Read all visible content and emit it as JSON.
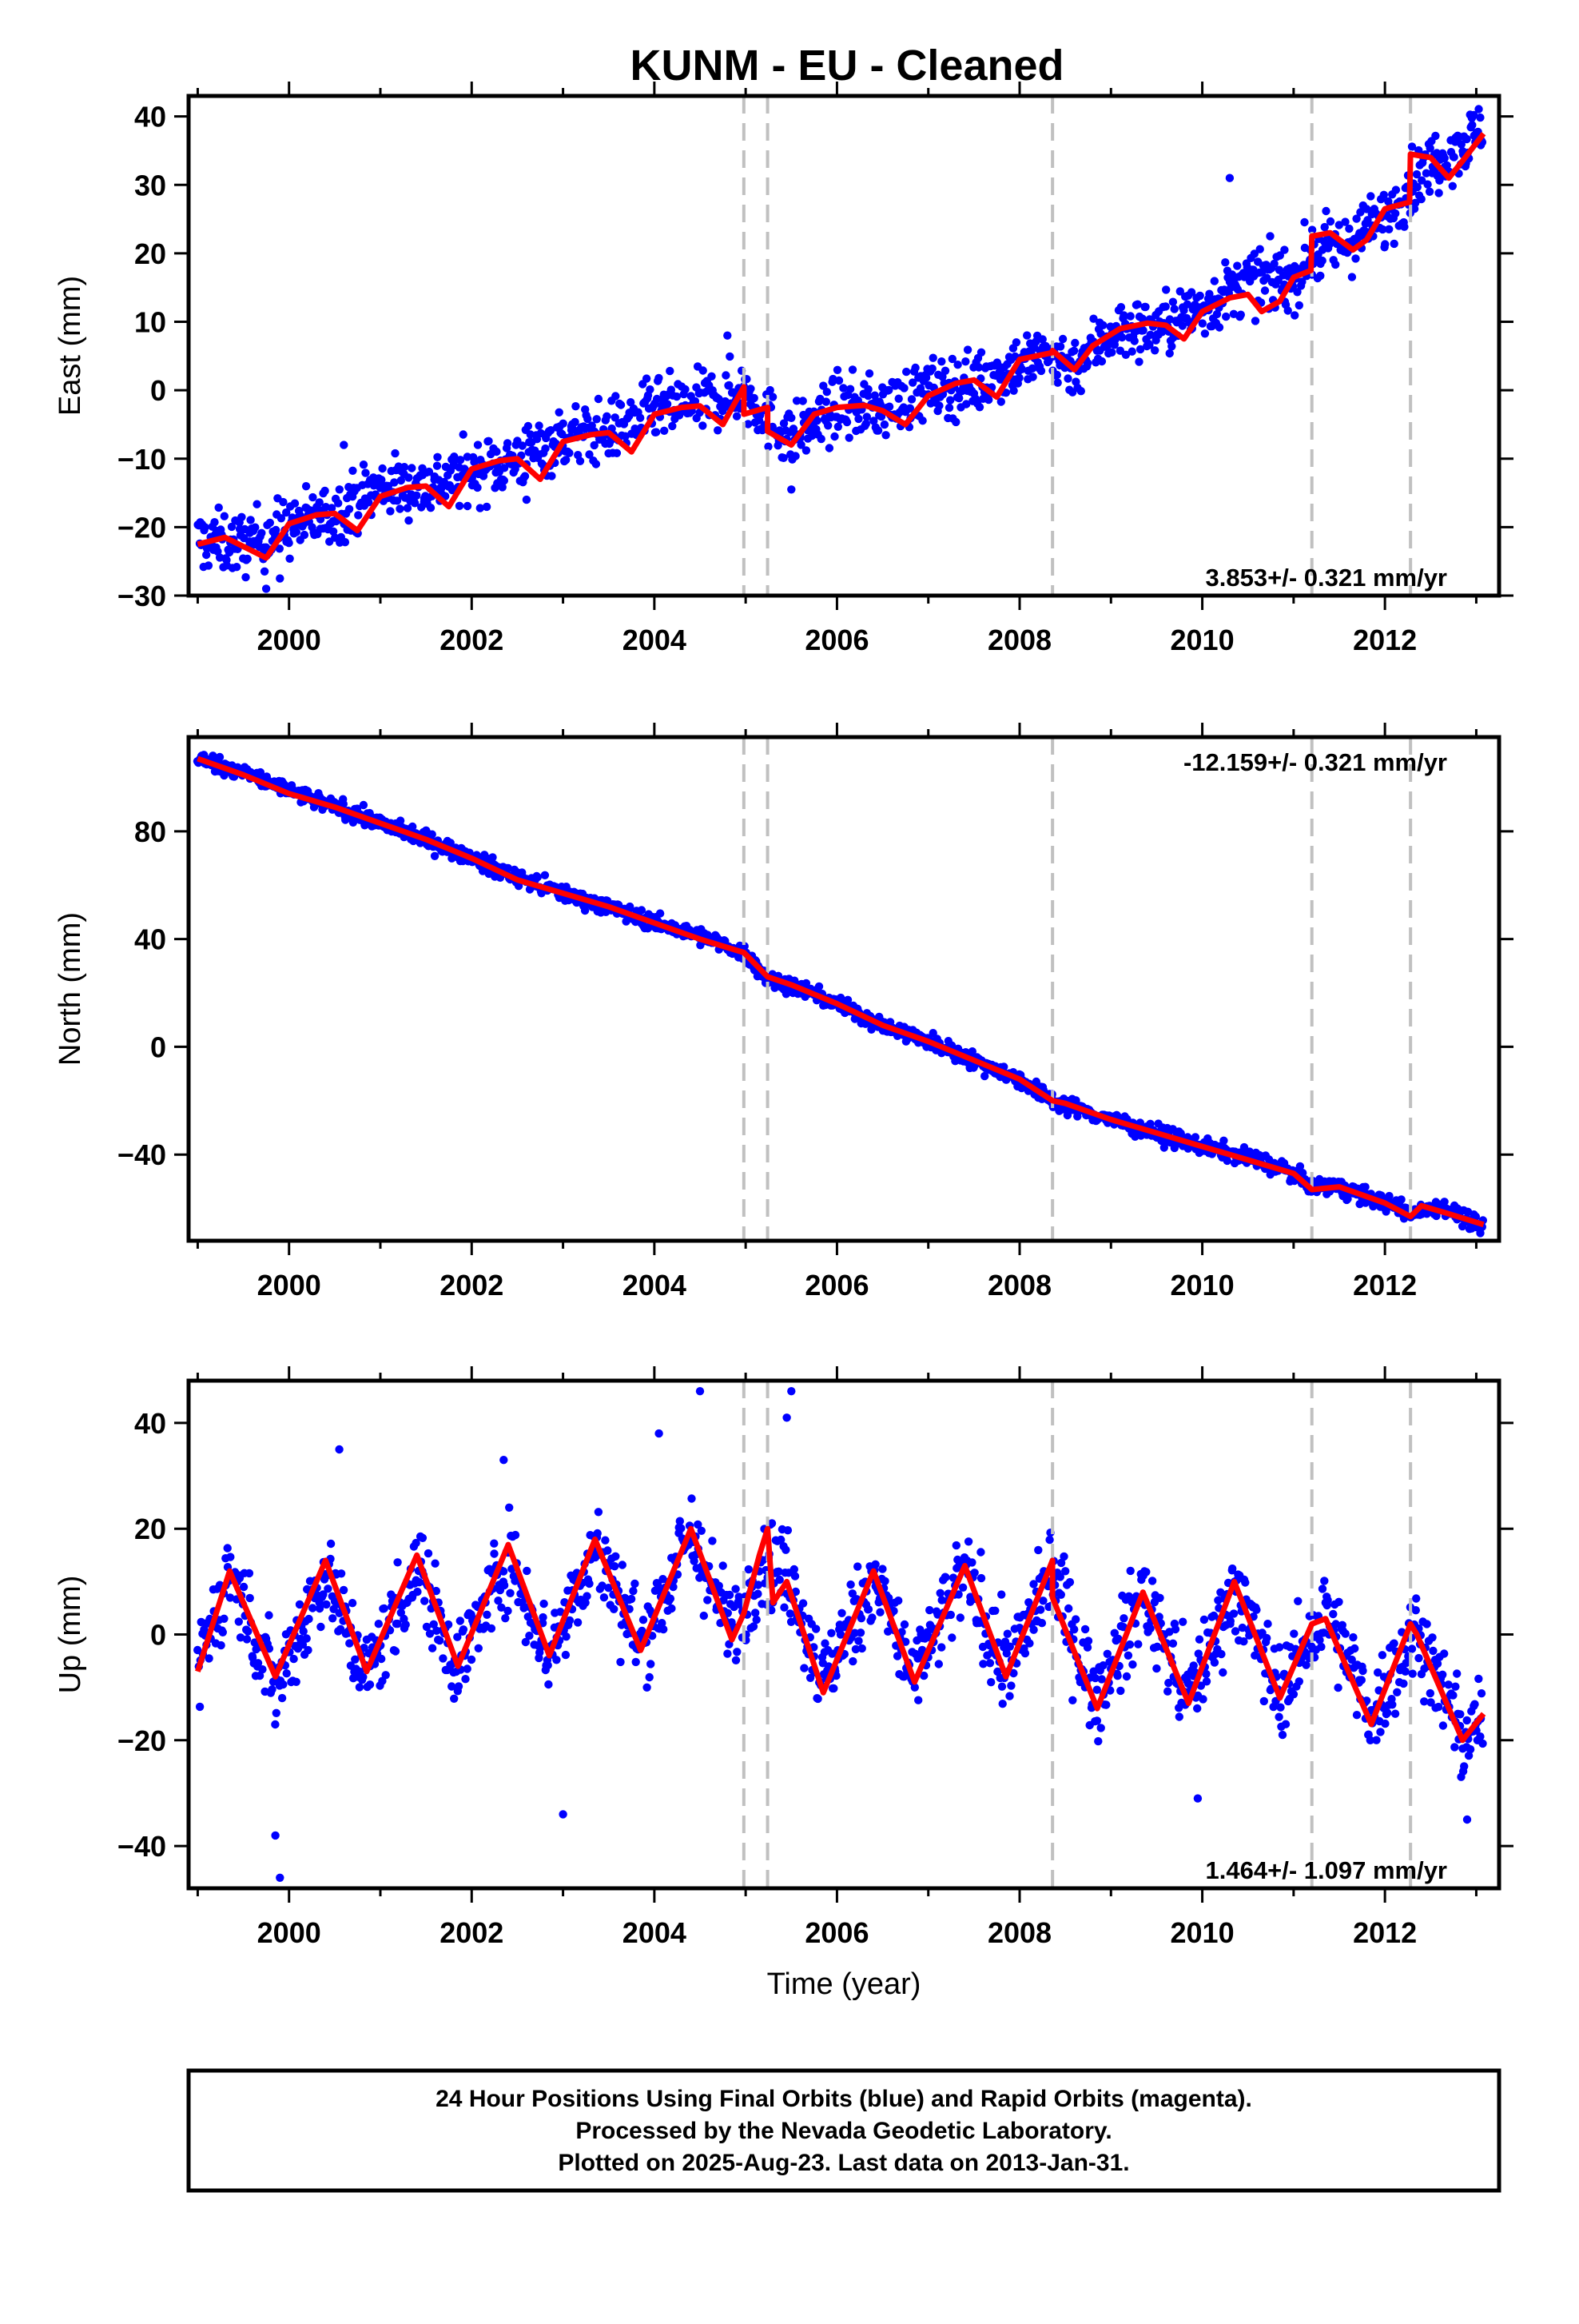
{
  "title": "KUNM  - EU - Cleaned",
  "footer": {
    "line1": "24 Hour Positions Using Final Orbits (blue) and Rapid Orbits (magenta).",
    "line2": "Processed by the Nevada Geodetic Laboratory.",
    "line3": "Plotted on 2025-Aug-23. Last data on 2013-Jan-31."
  },
  "colors": {
    "data": "#0000ff",
    "model": "#ff0000",
    "steps": "#c0c0c0",
    "frame": "#000000"
  },
  "chart_data": [
    {
      "type": "scatter",
      "name": "east",
      "ylabel": "East (mm)",
      "xlabel": "",
      "xlim": [
        1998.9,
        2013.25
      ],
      "ylim": [
        -30,
        43
      ],
      "yticks": [
        40,
        30,
        20,
        10,
        0,
        -10,
        -20,
        -30
      ],
      "yticklabels": [
        "40",
        "30",
        "20",
        "10",
        "0",
        "−10",
        "−20",
        "−30"
      ],
      "xticks": [
        2000,
        2002,
        2004,
        2006,
        2008,
        2010,
        2012
      ],
      "xticklabels": [
        "2000",
        "2002",
        "2004",
        "2006",
        "2008",
        "2010",
        "2012"
      ],
      "rate_label": "3.853+/- 0.321 mm/yr",
      "rate_position": "bottom-right",
      "step_epochs": [
        2004.98,
        2005.24,
        2008.36,
        2011.2,
        2012.28
      ],
      "model": [
        [
          1999.0,
          -22.5
        ],
        [
          1999.3,
          -21.5
        ],
        [
          1999.6,
          -23.5
        ],
        [
          1999.75,
          -24.5
        ],
        [
          2000.0,
          -19.5
        ],
        [
          2000.3,
          -18.2
        ],
        [
          2000.5,
          -18.0
        ],
        [
          2000.75,
          -20.5
        ],
        [
          2001.0,
          -15.5
        ],
        [
          2001.3,
          -14.2
        ],
        [
          2001.5,
          -14.0
        ],
        [
          2001.75,
          -17.0
        ],
        [
          2002.0,
          -11.5
        ],
        [
          2002.3,
          -10.3
        ],
        [
          2002.5,
          -10.0
        ],
        [
          2002.75,
          -13.0
        ],
        [
          2003.0,
          -7.5
        ],
        [
          2003.3,
          -6.5
        ],
        [
          2003.5,
          -6.2
        ],
        [
          2003.75,
          -9.0
        ],
        [
          2004.0,
          -3.5
        ],
        [
          2004.3,
          -2.5
        ],
        [
          2004.5,
          -2.3
        ],
        [
          2004.75,
          -5.0
        ],
        [
          2004.98,
          0.5
        ],
        [
          2004.98,
          -3.5
        ],
        [
          2005.24,
          -2.5
        ],
        [
          2005.24,
          -6.0
        ],
        [
          2005.5,
          -8.0
        ],
        [
          2005.75,
          -3.5
        ],
        [
          2006.0,
          -2.5
        ],
        [
          2006.3,
          -2.2
        ],
        [
          2006.5,
          -3.0
        ],
        [
          2006.75,
          -5.0
        ],
        [
          2007.0,
          -0.8
        ],
        [
          2007.3,
          1.0
        ],
        [
          2007.5,
          1.5
        ],
        [
          2007.75,
          -1.0
        ],
        [
          2008.0,
          4.5
        ],
        [
          2008.36,
          5.5
        ],
        [
          2008.36,
          5.8
        ],
        [
          2008.6,
          3.0
        ],
        [
          2008.8,
          6.5
        ],
        [
          2009.1,
          9.0
        ],
        [
          2009.4,
          9.8
        ],
        [
          2009.6,
          9.5
        ],
        [
          2009.8,
          7.5
        ],
        [
          2010.0,
          11.5
        ],
        [
          2010.3,
          13.5
        ],
        [
          2010.5,
          14.0
        ],
        [
          2010.65,
          11.5
        ],
        [
          2010.85,
          13.0
        ],
        [
          2011.0,
          16.5
        ],
        [
          2011.19,
          17.5
        ],
        [
          2011.2,
          22.5
        ],
        [
          2011.4,
          23.0
        ],
        [
          2011.65,
          20.5
        ],
        [
          2011.8,
          22.0
        ],
        [
          2012.0,
          26.5
        ],
        [
          2012.27,
          27.5
        ],
        [
          2012.28,
          34.5
        ],
        [
          2012.5,
          34.0
        ],
        [
          2012.7,
          31.0
        ],
        [
          2012.85,
          33.5
        ],
        [
          2013.08,
          37.5
        ]
      ],
      "scatter": {
        "anchors": [
          [
            1999.0,
            -22
          ],
          [
            1999.5,
            -22.5
          ],
          [
            2000.0,
            -20
          ],
          [
            2000.5,
            -18
          ],
          [
            2001.0,
            -14
          ],
          [
            2001.5,
            -14
          ],
          [
            2002.0,
            -12
          ],
          [
            2002.5,
            -10
          ],
          [
            2003.0,
            -7
          ],
          [
            2003.5,
            -6
          ],
          [
            2004.0,
            -3
          ],
          [
            2004.5,
            -2
          ],
          [
            2004.98,
            0
          ],
          [
            2005.24,
            -4
          ],
          [
            2005.5,
            -7
          ],
          [
            2006.0,
            -2.5
          ],
          [
            2006.5,
            -2.5
          ],
          [
            2007.0,
            0
          ],
          [
            2007.5,
            1
          ],
          [
            2008.0,
            4
          ],
          [
            2008.36,
            5
          ],
          [
            2008.6,
            3.5
          ],
          [
            2009.0,
            8.5
          ],
          [
            2009.5,
            9
          ],
          [
            2010.0,
            12
          ],
          [
            2010.5,
            16
          ],
          [
            2011.0,
            16
          ],
          [
            2011.2,
            20
          ],
          [
            2011.5,
            21
          ],
          [
            2012.0,
            25
          ],
          [
            2012.28,
            30
          ],
          [
            2012.5,
            33
          ],
          [
            2013.08,
            38
          ]
        ],
        "spread": 3.2,
        "outliers": [
          [
            1999.75,
            -29
          ],
          [
            1999.9,
            -27.5
          ],
          [
            2000.6,
            -8
          ],
          [
            2002.6,
            -16
          ],
          [
            2004.8,
            8
          ],
          [
            2005.5,
            -14.5
          ],
          [
            2010.3,
            31
          ],
          [
            2010.9,
            20.5
          ]
        ]
      }
    },
    {
      "type": "scatter",
      "name": "north",
      "ylabel": "North (mm)",
      "xlabel": "",
      "xlim": [
        1998.9,
        2013.25
      ],
      "ylim": [
        -72,
        115
      ],
      "yticks": [
        80,
        40,
        0,
        -40
      ],
      "yticklabels": [
        "80",
        "40",
        "0",
        "−40"
      ],
      "xticks": [
        2000,
        2002,
        2004,
        2006,
        2008,
        2010,
        2012
      ],
      "xticklabels": [
        "2000",
        "2002",
        "2004",
        "2006",
        "2008",
        "2010",
        "2012"
      ],
      "rate_label": "-12.159+/- 0.321 mm/yr",
      "rate_position": "top-right",
      "step_epochs": [
        2004.98,
        2005.24,
        2008.36,
        2011.2,
        2012.28
      ],
      "model": [
        [
          1999.0,
          107
        ],
        [
          1999.5,
          101
        ],
        [
          2000.0,
          94
        ],
        [
          2000.5,
          89
        ],
        [
          2001.0,
          83
        ],
        [
          2001.5,
          77
        ],
        [
          2002.0,
          70
        ],
        [
          2002.5,
          62
        ],
        [
          2003.0,
          57
        ],
        [
          2003.5,
          52
        ],
        [
          2004.0,
          46
        ],
        [
          2004.5,
          40
        ],
        [
          2004.98,
          35
        ],
        [
          2005.24,
          26
        ],
        [
          2005.5,
          23
        ],
        [
          2006.0,
          16
        ],
        [
          2006.5,
          8
        ],
        [
          2007.0,
          2
        ],
        [
          2007.5,
          -5
        ],
        [
          2008.0,
          -12
        ],
        [
          2008.36,
          -20
        ],
        [
          2008.5,
          -21
        ],
        [
          2009.0,
          -27
        ],
        [
          2009.5,
          -32
        ],
        [
          2010.0,
          -37
        ],
        [
          2010.5,
          -42
        ],
        [
          2011.0,
          -47
        ],
        [
          2011.2,
          -53
        ],
        [
          2011.5,
          -52
        ],
        [
          2012.0,
          -58
        ],
        [
          2012.28,
          -63
        ],
        [
          2012.4,
          -59
        ],
        [
          2012.7,
          -62
        ],
        [
          2013.08,
          -66
        ]
      ],
      "scatter": {
        "anchors": [
          [
            1999.0,
            107
          ],
          [
            1999.5,
            102
          ],
          [
            2000.0,
            95
          ],
          [
            2000.5,
            89
          ],
          [
            2001.0,
            83
          ],
          [
            2001.5,
            77
          ],
          [
            2002.0,
            70
          ],
          [
            2002.5,
            63
          ],
          [
            2003.0,
            57
          ],
          [
            2003.5,
            52
          ],
          [
            2004.0,
            46
          ],
          [
            2004.5,
            41
          ],
          [
            2004.98,
            35
          ],
          [
            2005.24,
            25
          ],
          [
            2005.5,
            23
          ],
          [
            2006.0,
            16
          ],
          [
            2006.5,
            8
          ],
          [
            2007.0,
            2
          ],
          [
            2007.5,
            -5
          ],
          [
            2008.0,
            -12
          ],
          [
            2008.36,
            -20
          ],
          [
            2009.0,
            -27
          ],
          [
            2009.5,
            -32
          ],
          [
            2010.0,
            -37
          ],
          [
            2010.5,
            -41
          ],
          [
            2011.0,
            -47
          ],
          [
            2011.2,
            -52
          ],
          [
            2011.5,
            -52
          ],
          [
            2012.0,
            -58
          ],
          [
            2012.28,
            -62
          ],
          [
            2012.6,
            -59
          ],
          [
            2013.08,
            -67
          ]
        ],
        "spread": 2.2,
        "outliers": []
      }
    },
    {
      "type": "scatter",
      "name": "up",
      "ylabel": "Up (mm)",
      "xlabel": "Time (year)",
      "xlim": [
        1998.9,
        2013.25
      ],
      "ylim": [
        -48,
        48
      ],
      "yticks": [
        40,
        20,
        0,
        -20,
        -40
      ],
      "yticklabels": [
        "40",
        "20",
        "0",
        "−20",
        "−40"
      ],
      "xticks": [
        2000,
        2002,
        2004,
        2006,
        2008,
        2010,
        2012
      ],
      "xticklabels": [
        "2000",
        "2002",
        "2004",
        "2006",
        "2008",
        "2010",
        "2012"
      ],
      "rate_label": "1.464+/- 1.097 mm/yr",
      "rate_position": "bottom-right",
      "step_epochs": [
        2004.98,
        2005.24,
        2008.36,
        2011.2,
        2012.28
      ],
      "model": [
        [
          1999.0,
          -7
        ],
        [
          1999.35,
          12
        ],
        [
          1999.85,
          -8
        ],
        [
          2000.4,
          14
        ],
        [
          2000.85,
          -7
        ],
        [
          2001.4,
          15
        ],
        [
          2001.85,
          -6
        ],
        [
          2002.4,
          17
        ],
        [
          2002.85,
          -4
        ],
        [
          2003.35,
          18
        ],
        [
          2003.85,
          -3
        ],
        [
          2004.4,
          20
        ],
        [
          2004.85,
          -1
        ],
        [
          2004.98,
          4
        ],
        [
          2005.15,
          15
        ],
        [
          2005.24,
          20
        ],
        [
          2005.3,
          6
        ],
        [
          2005.45,
          10
        ],
        [
          2005.85,
          -11
        ],
        [
          2006.4,
          12
        ],
        [
          2006.85,
          -9
        ],
        [
          2007.4,
          13
        ],
        [
          2007.85,
          -8
        ],
        [
          2008.36,
          14
        ],
        [
          2008.36,
          7
        ],
        [
          2008.85,
          -14
        ],
        [
          2009.35,
          8
        ],
        [
          2009.85,
          -13
        ],
        [
          2010.35,
          10
        ],
        [
          2010.85,
          -12
        ],
        [
          2011.2,
          2
        ],
        [
          2011.35,
          3
        ],
        [
          2011.85,
          -17
        ],
        [
          2012.28,
          2
        ],
        [
          2012.35,
          0
        ],
        [
          2012.85,
          -20
        ],
        [
          2013.08,
          -15
        ]
      ],
      "scatter": {
        "anchors": [
          [
            1999.0,
            -6
          ],
          [
            1999.35,
            12
          ],
          [
            1999.85,
            -10
          ],
          [
            2000.4,
            12
          ],
          [
            2000.85,
            -8
          ],
          [
            2001.4,
            13
          ],
          [
            2001.85,
            -6
          ],
          [
            2002.4,
            15
          ],
          [
            2002.85,
            -4
          ],
          [
            2003.35,
            17
          ],
          [
            2003.85,
            -2
          ],
          [
            2004.4,
            19
          ],
          [
            2004.85,
            0
          ],
          [
            2005.2,
            15
          ],
          [
            2005.45,
            12
          ],
          [
            2005.85,
            -9
          ],
          [
            2006.4,
            11
          ],
          [
            2006.85,
            -8
          ],
          [
            2007.4,
            12
          ],
          [
            2007.85,
            -7
          ],
          [
            2008.36,
            12
          ],
          [
            2008.85,
            -13
          ],
          [
            2009.35,
            8
          ],
          [
            2009.85,
            -12
          ],
          [
            2010.35,
            9
          ],
          [
            2010.85,
            -11
          ],
          [
            2011.35,
            4
          ],
          [
            2011.85,
            -15
          ],
          [
            2012.35,
            1
          ],
          [
            2012.85,
            -20
          ],
          [
            2013.08,
            -15
          ]
        ],
        "spread": 6.0,
        "outliers": [
          [
            1999.9,
            -46
          ],
          [
            1999.85,
            -38
          ],
          [
            2000.55,
            35
          ],
          [
            2004.5,
            46
          ],
          [
            2005.5,
            46
          ],
          [
            2005.45,
            41
          ],
          [
            2003.0,
            -34
          ],
          [
            2004.05,
            38
          ],
          [
            2009.95,
            -31
          ],
          [
            2012.9,
            -35
          ],
          [
            2002.35,
            33
          ]
        ]
      }
    }
  ]
}
